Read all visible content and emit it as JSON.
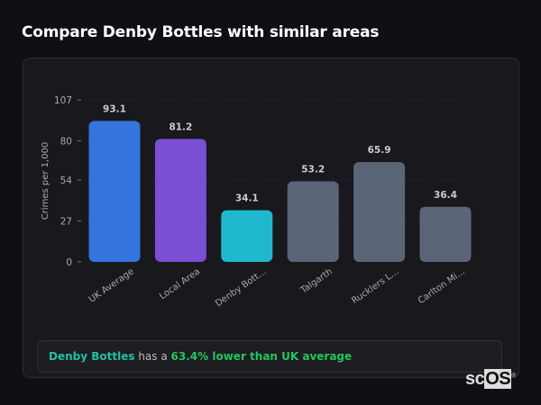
{
  "title": "Compare Denby Bottles with similar areas",
  "chart_data": {
    "type": "bar",
    "title": "",
    "xlabel": "",
    "ylabel": "Crimes per 1,000",
    "ylim": [
      0,
      107
    ],
    "yticks": [
      0,
      27,
      54,
      80,
      107
    ],
    "grid": true,
    "categories": [
      "UK Average",
      "Local Area",
      "Denby Bott...",
      "Talgarth",
      "Rucklers L...",
      "Carlton Mi..."
    ],
    "values": [
      93.1,
      81.2,
      34.1,
      53.2,
      65.9,
      36.4
    ],
    "data_labels": [
      "93.1",
      "81.2",
      "34.1",
      "53.2",
      "65.9",
      "36.4"
    ],
    "colors": [
      "#3574dc",
      "#7a4fd4",
      "#20b8cf",
      "#5b6578",
      "#5b6578",
      "#5b6578"
    ]
  },
  "summary": {
    "area": "Denby Bottles",
    "connector": "has a",
    "result": "63.4% lower than UK average"
  },
  "logo": {
    "text_a": "sc",
    "text_b": "OS",
    "mark": "®"
  }
}
